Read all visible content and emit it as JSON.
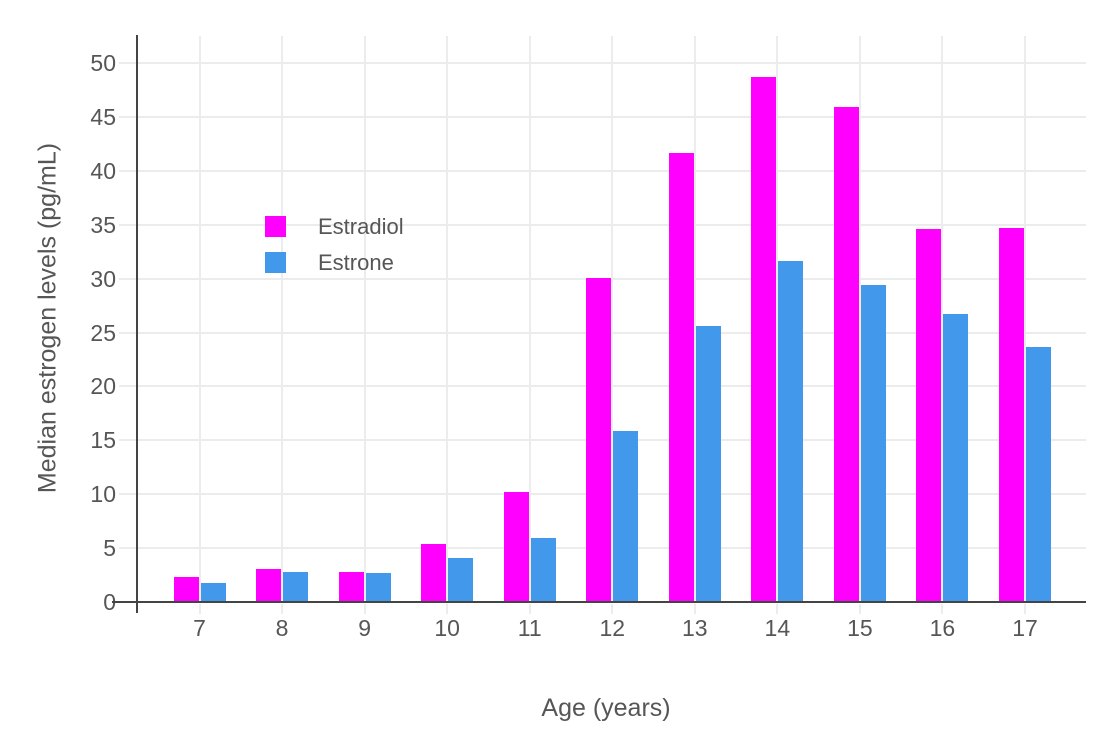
{
  "chart_data": {
    "type": "bar",
    "title": "",
    "categories": [
      "7",
      "8",
      "9",
      "10",
      "11",
      "12",
      "13",
      "14",
      "15",
      "16",
      "17"
    ],
    "series": [
      {
        "name": "Estradiol",
        "color": "#ff00ff",
        "values": [
          2.2,
          3.0,
          2.7,
          5.3,
          10.1,
          30.0,
          41.6,
          48.6,
          45.8,
          34.5,
          34.6
        ]
      },
      {
        "name": "Estrone",
        "color": "#4299ec",
        "values": [
          1.7,
          2.7,
          2.6,
          4.0,
          5.8,
          15.8,
          25.5,
          31.5,
          29.3,
          26.6,
          23.6
        ]
      }
    ],
    "xlabel": "Age (years)",
    "ylabel": "Median estrogen levels (pg/mL)",
    "ylim": [
      0,
      52.5
    ],
    "yticks": [
      0,
      5,
      10,
      15,
      20,
      25,
      30,
      35,
      40,
      45,
      50
    ],
    "grid": true,
    "legend_position": "inside-top-left"
  },
  "styles": {
    "background": "#ffffff",
    "axis_color": "#444444",
    "grid_color": "#ececec",
    "tick_label_color": "#565656",
    "title_color": "#565656"
  }
}
